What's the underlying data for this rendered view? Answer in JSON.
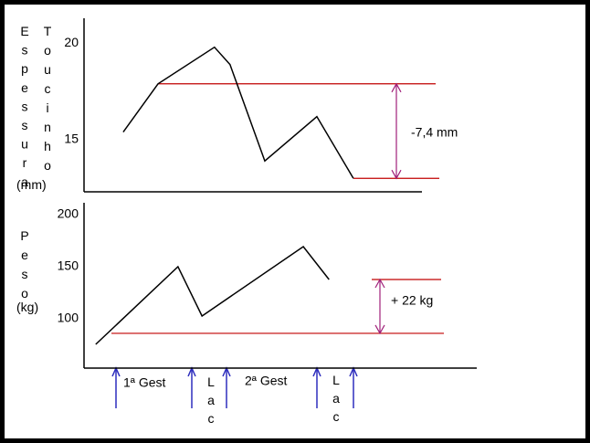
{
  "chart_data": [
    {
      "type": "line",
      "y_label": "Espessura",
      "y_label_2": "Toucinho",
      "y_unit": "(mm)",
      "x": [
        11.6,
        21.9,
        38.6,
        43.2,
        53.5,
        68.9,
        79.7
      ],
      "xlim": [
        0,
        100
      ],
      "series": [
        {
          "color": "#000000",
          "values": [
            15.4,
            17.9,
            19.8,
            18.9,
            13.9,
            16.2,
            13.0
          ]
        }
      ],
      "ylim": [
        12.3,
        21.3
      ],
      "yticks": [
        15,
        20
      ],
      "reference_lines": {
        "color": "#c00000",
        "values": [
          17.9,
          13.0
        ]
      },
      "annotation": "-7,4 mm"
    },
    {
      "type": "line",
      "y_label": "Peso",
      "y_unit": "(kg)",
      "x": [
        3.5,
        28.1,
        35.3,
        65.6,
        73.3
      ],
      "xlim": [
        0,
        100
      ],
      "series": [
        {
          "color": "#000000",
          "values": [
            75.4,
            150,
            102.6,
            169.3,
            137.7
          ]
        }
      ],
      "ylim": [
        52.6,
        211.4
      ],
      "yticks": [
        100,
        150,
        200
      ],
      "reference_lines": {
        "color": "#c00000",
        "values": [
          137.7,
          86
        ]
      },
      "annotation": "+ 22 kg",
      "phases": [
        "1ª Gest",
        "Lac",
        "2ª Gest",
        "Lac"
      ]
    }
  ]
}
